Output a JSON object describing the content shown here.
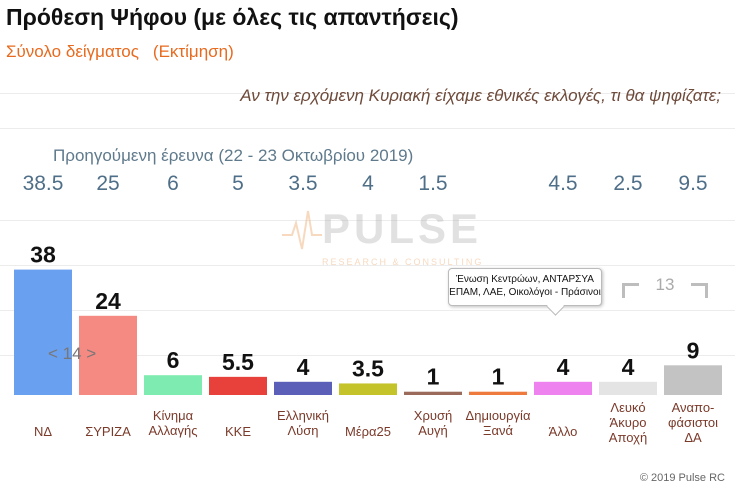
{
  "header": {
    "title": "Πρόθεση Ψήφου (με όλες τις απαντήσεις)",
    "subtitle": "Σύνολο δείγματος",
    "estimate": "(Εκτίμηση)",
    "question": "Αν την ερχόμενη Κυριακή είχαμε εθνικές εκλογές, τι θα ψηφίζατε;"
  },
  "previous": {
    "label": "Προηγούμενη έρευνα  (22 - 23  Οκτωβρίου  2019)",
    "values": [
      "38.5",
      "25",
      "6",
      "5",
      "3.5",
      "4",
      "1.5",
      "",
      "4.5",
      "2.5",
      "9.5"
    ]
  },
  "logo": {
    "name": "PULSE",
    "tagline": "RESEARCH & CONSULTING"
  },
  "callout": {
    "line1": "Ένωση Κεντρώων, ΑΝΤΑΡΣΥΑ",
    "line2": "ΕΠΑΜ, ΛΑΕ, Οικολόγοι - Πράσινοι"
  },
  "bracket_label": "13",
  "arrows_label": "< 14 >",
  "copyright": "© 2019 Pulse RC",
  "chart_data": {
    "type": "bar",
    "title": "Πρόθεση Ψήφου (με όλες τις απαντήσεις)",
    "categories": [
      "ΝΔ",
      "ΣΥΡΙΖΑ",
      "Κίνημα Αλλαγής",
      "ΚΚΕ",
      "Ελληνική Λύση",
      "Μέρα25",
      "Χρυσή Αυγή",
      "Δημιουργία Ξανά",
      "Άλλο",
      "Λευκό Άκυρο Αποχή",
      "Αναποφάσιστοι ΔΑ"
    ],
    "category_lines": [
      [
        "ΝΔ"
      ],
      [
        "ΣΥΡΙΖΑ"
      ],
      [
        "Κίνημα",
        "Αλλαγής"
      ],
      [
        "ΚΚΕ"
      ],
      [
        "Ελληνική",
        "Λύση"
      ],
      [
        "Μέρα25"
      ],
      [
        "Χρυσή",
        "Αυγή"
      ],
      [
        "Δημιουργία",
        "Ξανά"
      ],
      [
        "Άλλο"
      ],
      [
        "Λευκό",
        "Άκυρο",
        "Αποχή"
      ],
      [
        "Αναπο-",
        "φάσιστοι",
        "ΔΑ"
      ]
    ],
    "values": [
      38,
      24,
      6,
      5.5,
      4,
      3.5,
      1,
      1,
      4,
      4,
      9
    ],
    "value_labels": [
      "38",
      "24",
      "6",
      "5.5",
      "4",
      "3.5",
      "1",
      "1",
      "4",
      "4",
      "9"
    ],
    "colors": [
      "#6aa0f0",
      "#f58a82",
      "#7eebb0",
      "#e8403a",
      "#5b5fb8",
      "#c4c42a",
      "#9b6a5a",
      "#ee7a3e",
      "#ee82ee",
      "#e4e4e4",
      "#c3c3c3"
    ],
    "previous_values": [
      38.5,
      25,
      6,
      5,
      3.5,
      4,
      1.5,
      null,
      4.5,
      2.5,
      9.5
    ],
    "ylim": [
      0,
      40
    ],
    "grid": true
  }
}
